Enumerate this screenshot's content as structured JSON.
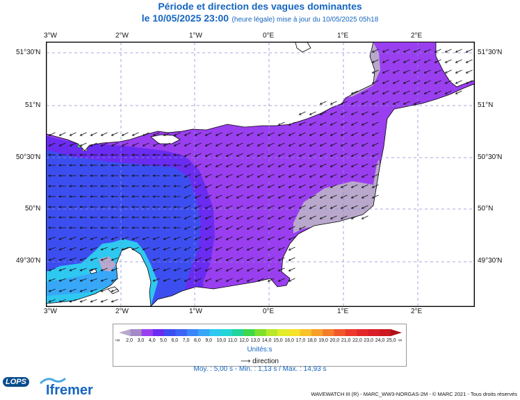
{
  "header": {
    "title": "Période et direction des vagues dominantes",
    "subtitle_main": "le 10/05/2025 23:00",
    "subtitle_note": "(heure légale) mise à jour du 10/05/2025 05h18"
  },
  "axes": {
    "top_lon_labels": [
      "3°W",
      "2°W",
      "1°W",
      "0°E",
      "1°E",
      "2°E"
    ],
    "bottom_lon_labels": [
      "3°W",
      "2°W",
      "1°W",
      "0°E",
      "1°E",
      "2°E"
    ],
    "left_lat_labels": [
      "51°30'N",
      "51°N",
      "50°30'N",
      "50°N",
      "49°30'N"
    ],
    "right_lat_labels": [
      "51°30'N",
      "51°N",
      "50°30'N",
      "50°N",
      "49°30'N"
    ]
  },
  "legend": {
    "labels": [
      "2,0",
      "3,0",
      "4,0",
      "5,0",
      "6,0",
      "7,0",
      "8,0",
      "9,0",
      "10,0",
      "11,0",
      "12,0",
      "13,0",
      "14,0",
      "15,0",
      "16,0",
      "17,0",
      "18,0",
      "19,0",
      "20,0",
      "21,0",
      "22,0",
      "23,0",
      "24,0",
      "25,0"
    ],
    "minus_inf": "-∞",
    "plus_inf": "∞",
    "colors": [
      "#b9a8cc",
      "#a48bc8",
      "#9a3ff0",
      "#6a2cf0",
      "#3d4ef0",
      "#3c64f5",
      "#3a86f8",
      "#38a7f8",
      "#2ec8f0",
      "#22d6d6",
      "#22d49a",
      "#3ed84a",
      "#7ee02c",
      "#b8e82a",
      "#e2ec2a",
      "#f5e22a",
      "#f7c22a",
      "#f6a02a",
      "#f47c2a",
      "#f0582a",
      "#ec3a2a",
      "#e4282a",
      "#d81e28",
      "#cc1820",
      "#b01018"
    ],
    "units": "Unités:s",
    "direction_label": "direction"
  },
  "stats": "Moy. : 5,00 s   -   Min. : 1,13 s / Max. : 14,93 s",
  "footer": "WAVEWATCH III (R) - MARC_WW3-NORGAS-2M - © MARC 2021 - Tous droits réservés",
  "logos": {
    "lops": "LOPS",
    "ifremer": "Ifremer"
  },
  "map": {
    "lon_range": [
      -3.0,
      2.75
    ],
    "lat_range": [
      49.17,
      51.55
    ],
    "period_colors": {
      "grey_under_3s": "#b9a8cc",
      "violet_4s": "#9a3ff0",
      "indigo_5s": "#6a2cf0",
      "blue_6s": "#3d4ef0",
      "blue_9s": "#38a7f8",
      "cyan_10s": "#2ec8f0",
      "green_13s": "#3ed84a",
      "yellow_green_14s": "#b8e82a"
    }
  }
}
